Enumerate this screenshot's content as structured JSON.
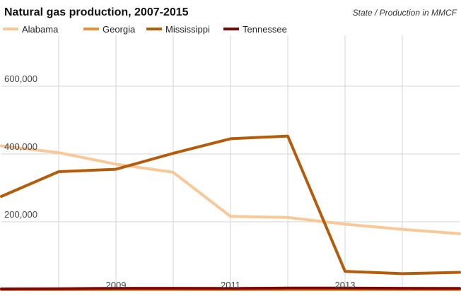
{
  "chart_data": {
    "type": "line",
    "title": "Natural gas production, 2007-2015",
    "subtitle": "State / Production in MMCF",
    "xlabel": "",
    "ylabel": "",
    "x": [
      2007,
      2008,
      2009,
      2010,
      2011,
      2012,
      2013,
      2014,
      2015
    ],
    "x_tick_labels": [
      "2009",
      "2011",
      "2013"
    ],
    "x_tick_values": [
      2009,
      2011,
      2013
    ],
    "y_tick_labels": [
      "200,000",
      "400,000",
      "600,000"
    ],
    "y_tick_values": [
      200000,
      400000,
      600000
    ],
    "ylim": [
      0,
      750000
    ],
    "xlim": [
      2007,
      2015
    ],
    "grid": true,
    "legend_position": "top-left",
    "series": [
      {
        "name": "Alabama",
        "color": "#f9c898",
        "values": [
          424000,
          404000,
          370000,
          346000,
          216000,
          213000,
          193000,
          178000,
          165000
        ]
      },
      {
        "name": "Georgia",
        "color": "#e6923b",
        "values": [
          0,
          0,
          0,
          0,
          0,
          0,
          0,
          0,
          0
        ]
      },
      {
        "name": "Mississippi",
        "color": "#b35c0c",
        "values": [
          275000,
          348000,
          355000,
          402000,
          445000,
          453000,
          54000,
          47000,
          51000
        ]
      },
      {
        "name": "Tennessee",
        "color": "#7a0606",
        "values": [
          2000,
          2500,
          4000,
          4000,
          3500,
          4500,
          4500,
          4000,
          3500
        ]
      }
    ]
  }
}
